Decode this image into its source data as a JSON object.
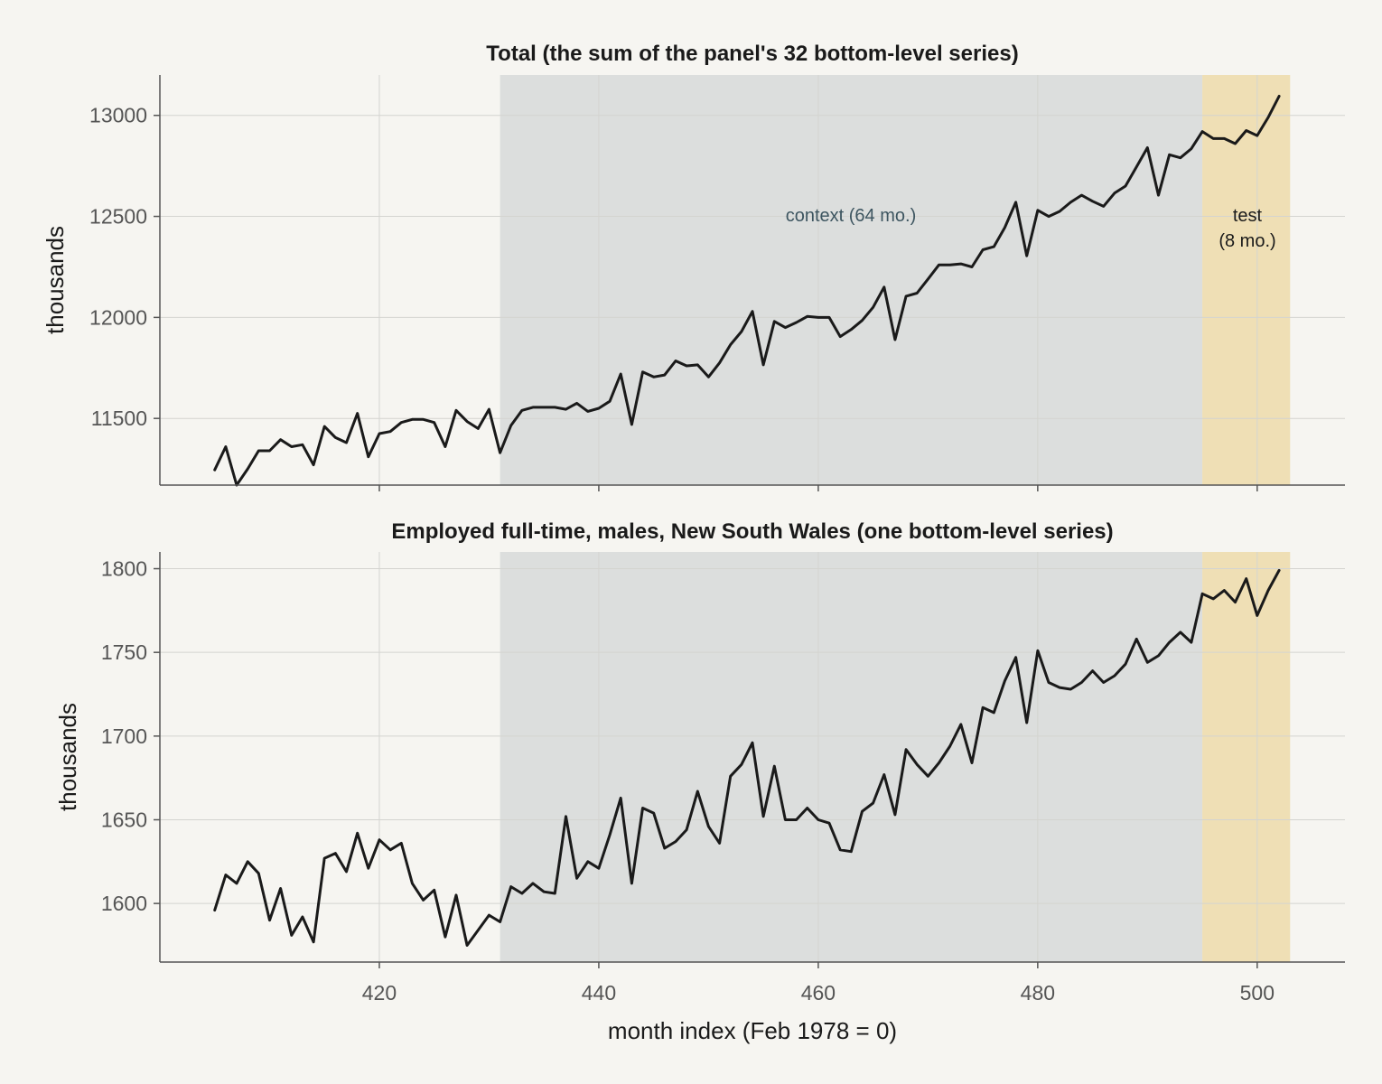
{
  "figure": {
    "xlabel": "month index (Feb 1978 = 0)",
    "xlim": [
      400,
      508
    ],
    "xticks": [
      420,
      440,
      460,
      480,
      500
    ],
    "colors": {
      "background": "#f6f5f1",
      "context_shade": "#dcdedd",
      "test_shade": "#efdfb5",
      "line": "#1a1a1a",
      "grid": "#d4d4d0",
      "axis": "#555555"
    }
  },
  "regions": {
    "context": {
      "label": "context (64 mo.)",
      "start": 431,
      "end": 495
    },
    "test": {
      "label_lines": [
        "test",
        "(8 mo.)"
      ],
      "start": 495,
      "end": 503
    }
  },
  "chart_data": [
    {
      "type": "line",
      "title": "Total (the sum of the panel's 32 bottom-level series)",
      "ylabel": "thousands",
      "ylim": [
        11170,
        13200
      ],
      "yticks": [
        11500,
        12000,
        12500,
        13000
      ],
      "grid": true,
      "x_start": 405,
      "values": [
        11245,
        11360,
        11170,
        11250,
        11340,
        11340,
        11395,
        11360,
        11370,
        11270,
        11460,
        11405,
        11380,
        11525,
        11310,
        11425,
        11435,
        11480,
        11495,
        11495,
        11480,
        11360,
        11540,
        11485,
        11450,
        11545,
        11330,
        11465,
        11540,
        11555,
        11555,
        11555,
        11545,
        11575,
        11535,
        11550,
        11585,
        11720,
        11470,
        11730,
        11705,
        11715,
        11785,
        11760,
        11765,
        11705,
        11775,
        11865,
        11930,
        12030,
        11765,
        11980,
        11950,
        11975,
        12005,
        12000,
        12000,
        11905,
        11940,
        11985,
        12050,
        12150,
        11890,
        12105,
        12120,
        12190,
        12260,
        12260,
        12265,
        12250,
        12335,
        12350,
        12445,
        12570,
        12305,
        12530,
        12500,
        12525,
        12570,
        12605,
        12575,
        12550,
        12615,
        12650,
        12745,
        12840,
        12605,
        12805,
        12790,
        12835,
        12920,
        12885,
        12885,
        12860,
        12925,
        12900,
        12990,
        13095
      ]
    },
    {
      "type": "line",
      "title": "Employed full-time, males, New South Wales (one bottom-level series)",
      "ylabel": "thousands",
      "ylim": [
        1565,
        1810
      ],
      "yticks": [
        1600,
        1650,
        1700,
        1750,
        1800
      ],
      "grid": true,
      "x_start": 405,
      "values": [
        1596,
        1617,
        1612,
        1625,
        1618,
        1590,
        1609,
        1581,
        1592,
        1577,
        1627,
        1630,
        1619,
        1642,
        1621,
        1638,
        1632,
        1636,
        1612,
        1602,
        1608,
        1580,
        1605,
        1575,
        1584,
        1593,
        1589,
        1610,
        1606,
        1612,
        1607,
        1606,
        1652,
        1615,
        1625,
        1621,
        1641,
        1663,
        1612,
        1657,
        1654,
        1633,
        1637,
        1644,
        1667,
        1646,
        1636,
        1676,
        1683,
        1696,
        1652,
        1682,
        1650,
        1650,
        1657,
        1650,
        1648,
        1632,
        1631,
        1655,
        1660,
        1677,
        1653,
        1692,
        1683,
        1676,
        1684,
        1694,
        1707,
        1684,
        1717,
        1714,
        1733,
        1747,
        1708,
        1751,
        1732,
        1729,
        1728,
        1732,
        1739,
        1732,
        1736,
        1743,
        1758,
        1744,
        1748,
        1756,
        1762,
        1756,
        1785,
        1782,
        1787,
        1780,
        1794,
        1772,
        1787,
        1799
      ]
    }
  ]
}
